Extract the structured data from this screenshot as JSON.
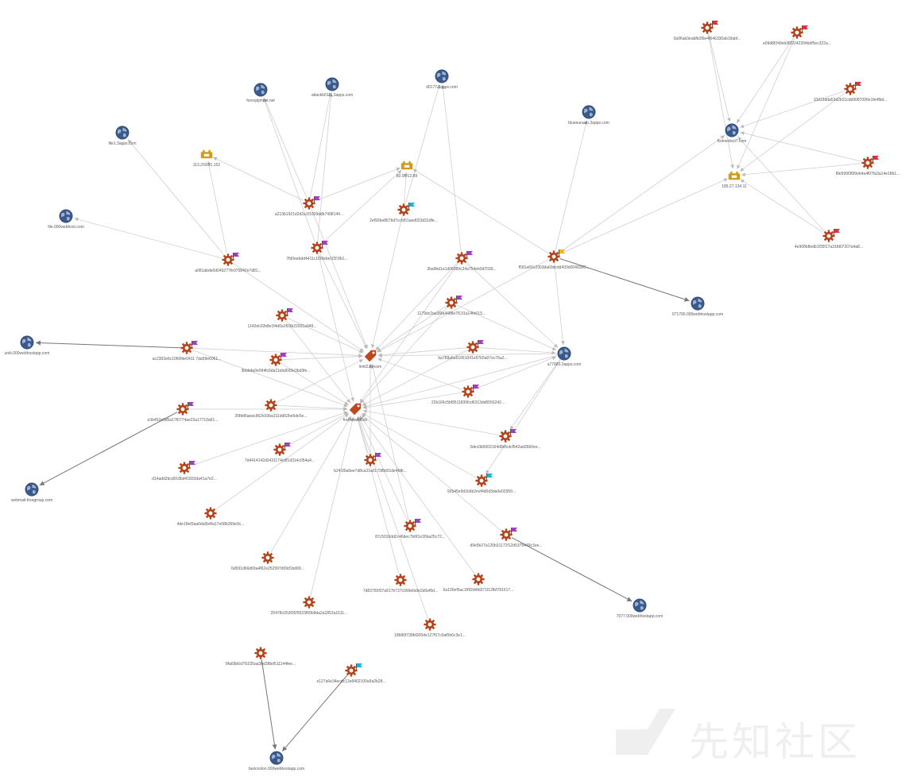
{
  "graph": {
    "nodes": [
      {
        "id": "n1",
        "type": "domain",
        "label": "forexpiphost.net"
      },
      {
        "id": "n2",
        "type": "domain",
        "label": "attackb0111.3apps.com"
      },
      {
        "id": "n3",
        "type": "domain",
        "label": "d0177.3apps.com"
      },
      {
        "id": "n4",
        "type": "domain",
        "label": "file1.3apps.com"
      },
      {
        "id": "n5",
        "type": "domain",
        "label": "file.000webhost.com"
      },
      {
        "id": "n6",
        "type": "domain",
        "label": "blueeurasin.3apps.com"
      },
      {
        "id": "n7",
        "type": "domain",
        "label": "fiximeriksii7.com"
      },
      {
        "id": "n8",
        "type": "domain",
        "label": "a77083.3apps.com"
      },
      {
        "id": "n9",
        "type": "domain",
        "label": "071790.000webhostapp.com"
      },
      {
        "id": "n10",
        "type": "domain",
        "label": "unik.000webhostapp.com"
      },
      {
        "id": "n11",
        "type": "domain",
        "label": "webmail-freegroup.com"
      },
      {
        "id": "n12",
        "type": "domain",
        "label": "7077.000webhostapp.com"
      },
      {
        "id": "n13",
        "type": "domain",
        "label": "fastcoolon.000webhostapp.com"
      },
      {
        "id": "n14",
        "type": "ip",
        "label": "113.203.91.152"
      },
      {
        "id": "n15",
        "type": "ip",
        "label": "80.95.12.89"
      },
      {
        "id": "n16",
        "type": "ip",
        "label": "185.27.134.11"
      },
      {
        "id": "n17",
        "type": "tag",
        "label": "limit2.lly.com"
      },
      {
        "id": "n18",
        "type": "tag",
        "label": "frankmeb8lob"
      },
      {
        "id": "n19",
        "type": "file",
        "label": "0a96ab3eabfb2f6e4f646330ab19abf...",
        "flag": "red"
      },
      {
        "id": "n20",
        "type": "file",
        "label": "e09d8f249eb3f20242304bdf5ec322a...",
        "flag": "red"
      },
      {
        "id": "n21",
        "type": "file",
        "label": "10d13dda53d2b21cdd9087096e1fe4fbd...",
        "flag": "red"
      },
      {
        "id": "n22",
        "type": "file",
        "label": "8fe599f3f99eb4a4f07fa3a14e18b1...",
        "flag": "red"
      },
      {
        "id": "n23",
        "type": "file",
        "label": "4e968b8edb1f35f17a31fd07207a4a8...",
        "flag": "red"
      },
      {
        "id": "n24",
        "type": "file",
        "label": "f581e66c2303da69dcdd433d0049300...",
        "flag": "yellow"
      },
      {
        "id": "n25",
        "type": "file",
        "label": "a213b1921d2d2a1f1009ddb7498144...",
        "flag": "purple"
      },
      {
        "id": "n26",
        "type": "file",
        "label": "2ef92be8676d7ccfd51aed023d31dfe...",
        "flag": "cyan"
      },
      {
        "id": "n27",
        "type": "file",
        "label": "7fd0eebdd4411c1f39ebe1f2f1fb1...",
        "flag": "purple"
      },
      {
        "id": "n28",
        "type": "file",
        "label": "a081abde0d049277fe975842e7d81...",
        "flag": "purple"
      },
      {
        "id": "n29",
        "type": "file",
        "label": "2ba9bd1a1d06089c34a754eb0d7036...",
        "flag": "purple"
      },
      {
        "id": "n30",
        "type": "file",
        "label": "1142dc02b8e1f4d0a1f03b22931a949...",
        "flag": "purple"
      },
      {
        "id": "n31",
        "type": "file",
        "label": "1179dc2aa36fa4488e7f131a14fe613...",
        "flag": "purple"
      },
      {
        "id": "n32",
        "type": "file",
        "label": "ac2303e6c1060fde0411 7da59e6061...",
        "flag": "purple"
      },
      {
        "id": "n33",
        "type": "file",
        "label": "3bbb4a0e094fc6da11ebd030e3bd3fe...",
        "flag": "purple"
      },
      {
        "id": "n34",
        "type": "file",
        "label": "ba788a6a61661041e97b5a07ec76a2...",
        "flag": "purple"
      },
      {
        "id": "n35",
        "type": "file",
        "label": "22b166c5bf9511830fcd6313dd0556242...",
        "flag": "purple"
      },
      {
        "id": "n36",
        "type": "file",
        "label": "e3b452e5d5a17f0774ae22a17710a61...",
        "flag": "purple"
      },
      {
        "id": "n37",
        "type": "file",
        "label": "26fdd6aeac962d10ba311dd02be5de5e...",
        "flag": "none"
      },
      {
        "id": "n38",
        "type": "file",
        "label": "7d4414142d2431174cdf1d314c054a4...",
        "flag": "purple"
      },
      {
        "id": "n39",
        "type": "file",
        "label": "3dec0b5902164d9dfcdcf542ad3660ee...",
        "flag": "purple"
      },
      {
        "id": "n40",
        "type": "file",
        "label": "d14add2bcd018bd41833da41a7e2...",
        "flag": "purple"
      },
      {
        "id": "n41",
        "type": "file",
        "label": "b241f0a6ee7d8ca31a0173f8d01de4fdb...",
        "flag": "purple"
      },
      {
        "id": "n42",
        "type": "file",
        "label": "92b45e9d1b6b2eef4d0d3da0e02959...",
        "flag": "cyan"
      },
      {
        "id": "n43",
        "type": "file",
        "label": "4de18ef3aa6da5b4fa17e08b369e0c...",
        "flag": "none"
      },
      {
        "id": "n44",
        "type": "file",
        "label": "87c5016dd2c46bec7b6f1e30ba25c72...",
        "flag": "purple"
      },
      {
        "id": "n45",
        "type": "file",
        "label": "d9e5b27a120b31172f12d5375449c3ee...",
        "flag": "purple"
      },
      {
        "id": "n46",
        "type": "file",
        "label": "6d591d66d69a4f62e252997d09d1bd09...",
        "flag": "none"
      },
      {
        "id": "n47",
        "type": "file",
        "label": "7d83760f37a917b737c099efa9e2d0ef6d...",
        "flag": "none"
      },
      {
        "id": "n48",
        "type": "file",
        "label": "6a100ef5ac1f6f2d4fd371f12fbf781617...",
        "flag": "none"
      },
      {
        "id": "n49",
        "type": "file",
        "label": "25478c053f3f25533f09b9da2a1852a1611...",
        "flag": "none"
      },
      {
        "id": "n50",
        "type": "file",
        "label": "18686f738fd300de127f07c0af0b6c3e1...",
        "flag": "none"
      },
      {
        "id": "n51",
        "type": "file",
        "label": "9fa69b6d7f1035aa3bd38bd511144fee...",
        "flag": "none"
      },
      {
        "id": "n52",
        "type": "file",
        "label": "e127a6e34ecdc12e8402100a9a2b28...",
        "flag": "cyan"
      }
    ],
    "edges": [
      [
        "n25",
        "n1"
      ],
      [
        "n25",
        "n2"
      ],
      [
        "n27",
        "n2"
      ],
      [
        "n27",
        "n1"
      ],
      [
        "n25",
        "n15"
      ],
      [
        "n27",
        "n15"
      ],
      [
        "n26",
        "n15"
      ],
      [
        "n26",
        "n3"
      ],
      [
        "n29",
        "n3"
      ],
      [
        "n28",
        "n4"
      ],
      [
        "n28",
        "n14"
      ],
      [
        "n28",
        "n5"
      ],
      [
        "n25",
        "n14"
      ],
      [
        "n24",
        "n6"
      ],
      [
        "n24",
        "n7"
      ],
      [
        "n24",
        "n15"
      ],
      [
        "n24",
        "n9"
      ],
      [
        "n24",
        "n16"
      ],
      [
        "n24",
        "n8"
      ],
      [
        "n19",
        "n7"
      ],
      [
        "n20",
        "n7"
      ],
      [
        "n21",
        "n7"
      ],
      [
        "n22",
        "n7"
      ],
      [
        "n23",
        "n7"
      ],
      [
        "n19",
        "n16"
      ],
      [
        "n20",
        "n16"
      ],
      [
        "n21",
        "n16"
      ],
      [
        "n22",
        "n16"
      ],
      [
        "n23",
        "n16"
      ],
      [
        "n32",
        "n10"
      ],
      [
        "n36",
        "n11"
      ],
      [
        "n51",
        "n13"
      ],
      [
        "n52",
        "n13"
      ],
      [
        "n45",
        "n12"
      ],
      [
        "n25",
        "n17"
      ],
      [
        "n27",
        "n17"
      ],
      [
        "n26",
        "n17"
      ],
      [
        "n28",
        "n17"
      ],
      [
        "n29",
        "n17"
      ],
      [
        "n30",
        "n17"
      ],
      [
        "n31",
        "n17"
      ],
      [
        "n32",
        "n17"
      ],
      [
        "n33",
        "n17"
      ],
      [
        "n34",
        "n17"
      ],
      [
        "n35",
        "n17"
      ],
      [
        "n37",
        "n17"
      ],
      [
        "n41",
        "n17"
      ],
      [
        "n44",
        "n17"
      ],
      [
        "n8",
        "n17"
      ],
      [
        "n24",
        "n17"
      ],
      [
        "n30",
        "n18"
      ],
      [
        "n31",
        "n18"
      ],
      [
        "n32",
        "n18"
      ],
      [
        "n33",
        "n18"
      ],
      [
        "n34",
        "n18"
      ],
      [
        "n35",
        "n18"
      ],
      [
        "n36",
        "n18"
      ],
      [
        "n37",
        "n18"
      ],
      [
        "n38",
        "n18"
      ],
      [
        "n39",
        "n18"
      ],
      [
        "n40",
        "n18"
      ],
      [
        "n41",
        "n18"
      ],
      [
        "n42",
        "n18"
      ],
      [
        "n43",
        "n18"
      ],
      [
        "n44",
        "n18"
      ],
      [
        "n45",
        "n18"
      ],
      [
        "n46",
        "n18"
      ],
      [
        "n47",
        "n18"
      ],
      [
        "n48",
        "n18"
      ],
      [
        "n49",
        "n18"
      ],
      [
        "n50",
        "n18"
      ],
      [
        "n8",
        "n18"
      ],
      [
        "n29",
        "n18"
      ],
      [
        "n27",
        "n18"
      ],
      [
        "n31",
        "n8"
      ],
      [
        "n34",
        "n8"
      ],
      [
        "n29",
        "n8"
      ],
      [
        "n8",
        "n39"
      ],
      [
        "n8",
        "n42"
      ],
      [
        "n35",
        "n8"
      ]
    ]
  },
  "watermark": {
    "text": "先知社区"
  }
}
